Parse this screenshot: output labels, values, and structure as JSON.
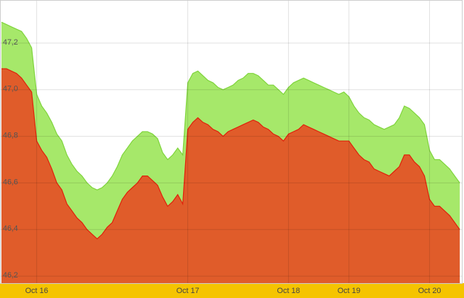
{
  "chart_data": {
    "type": "area",
    "categories": [
      null,
      null,
      null,
      null,
      null,
      null,
      null,
      "Oct 16",
      null,
      null,
      null,
      null,
      null,
      null,
      null,
      null,
      null,
      null,
      null,
      null,
      null,
      null,
      null,
      null,
      null,
      null,
      null,
      null,
      null,
      null,
      null,
      null,
      null,
      null,
      null,
      null,
      null,
      "Oct 17",
      null,
      null,
      null,
      null,
      null,
      null,
      null,
      null,
      null,
      null,
      null,
      null,
      null,
      null,
      null,
      null,
      null,
      null,
      null,
      "Oct 18",
      null,
      null,
      null,
      null,
      null,
      null,
      null,
      null,
      null,
      null,
      null,
      "Oct 19",
      null,
      null,
      null,
      null,
      null,
      null,
      null,
      null,
      null,
      null,
      null,
      null,
      null,
      null,
      null,
      "Oct 20",
      null,
      null,
      null,
      null,
      null,
      null
    ],
    "series": [
      {
        "color": "#a6e86a",
        "line_color": "#7fd43c",
        "values": [
          47.29,
          47.28,
          47.27,
          47.26,
          47.25,
          47.22,
          47.18,
          46.98,
          46.93,
          46.9,
          46.86,
          46.81,
          46.78,
          46.72,
          46.68,
          46.65,
          46.63,
          46.6,
          46.58,
          46.57,
          46.58,
          46.6,
          46.63,
          46.67,
          46.72,
          46.75,
          46.78,
          46.8,
          46.82,
          46.82,
          46.81,
          46.79,
          46.73,
          46.7,
          46.72,
          46.75,
          46.72,
          47.03,
          47.07,
          47.08,
          47.06,
          47.04,
          47.03,
          47.01,
          47.0,
          47.01,
          47.02,
          47.04,
          47.05,
          47.07,
          47.07,
          47.06,
          47.04,
          47.02,
          47.02,
          47.0,
          46.98,
          47.01,
          47.03,
          47.04,
          47.05,
          47.04,
          47.03,
          47.02,
          47.01,
          47.0,
          46.99,
          46.98,
          46.99,
          46.97,
          46.93,
          46.9,
          46.88,
          46.87,
          46.85,
          46.84,
          46.83,
          46.84,
          46.85,
          46.88,
          46.93,
          46.92,
          46.9,
          46.88,
          46.85,
          46.74,
          46.7,
          46.7,
          46.68,
          46.66,
          46.63,
          46.6
        ]
      },
      {
        "color": "#e05c2a",
        "line_color": "#e0200a",
        "values": [
          47.09,
          47.09,
          47.08,
          47.07,
          47.05,
          47.02,
          46.99,
          46.78,
          46.74,
          46.71,
          46.66,
          46.6,
          46.57,
          46.51,
          46.48,
          46.45,
          46.43,
          46.4,
          46.38,
          46.36,
          46.38,
          46.41,
          46.43,
          46.48,
          46.53,
          46.56,
          46.58,
          46.6,
          46.63,
          46.63,
          46.61,
          46.59,
          46.54,
          46.5,
          46.52,
          46.55,
          46.51,
          46.83,
          46.86,
          46.88,
          46.86,
          46.85,
          46.83,
          46.82,
          46.8,
          46.82,
          46.83,
          46.84,
          46.85,
          46.86,
          46.87,
          46.86,
          46.84,
          46.83,
          46.81,
          46.8,
          46.78,
          46.81,
          46.82,
          46.83,
          46.85,
          46.84,
          46.83,
          46.82,
          46.81,
          46.8,
          46.79,
          46.78,
          46.78,
          46.78,
          46.75,
          46.72,
          46.7,
          46.69,
          46.66,
          46.65,
          46.64,
          46.63,
          46.65,
          46.67,
          46.72,
          46.72,
          46.69,
          46.67,
          46.63,
          46.53,
          46.5,
          46.5,
          46.48,
          46.46,
          46.43,
          46.4
        ]
      }
    ],
    "ylim": [
      46.17,
      47.385
    ],
    "yticks": [
      {
        "value": 46.2,
        "label": "46,2"
      },
      {
        "value": 46.4,
        "label": "46,4"
      },
      {
        "value": 46.6,
        "label": "46,6"
      },
      {
        "value": 46.8,
        "label": "46,8"
      },
      {
        "value": 47.0,
        "label": "47,0"
      },
      {
        "value": 47.2,
        "label": "47,2"
      }
    ],
    "grid": true
  }
}
